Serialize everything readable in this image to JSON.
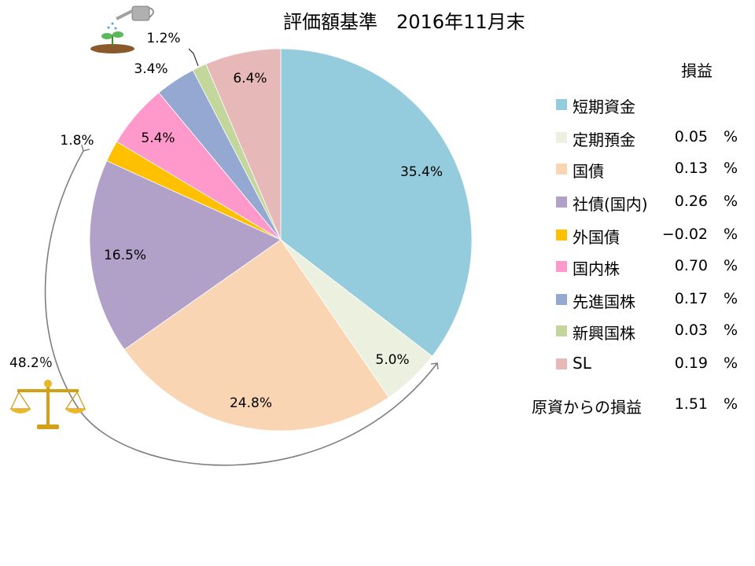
{
  "chart_data": {
    "type": "pie",
    "title": "評価額基準　2016年11月末",
    "start_angle_deg": 0,
    "direction": "clockwise",
    "slices": [
      {
        "name": "短期資金",
        "value": 35.4,
        "label": "35.4%",
        "color": "#94ccdd"
      },
      {
        "name": "定期預金",
        "value": 5.0,
        "label": "5.0%",
        "color": "#ebf0df"
      },
      {
        "name": "国債",
        "value": 24.8,
        "label": "24.8%",
        "color": "#f9d5b4"
      },
      {
        "name": "社債(国内)",
        "value": 16.5,
        "label": "16.5%",
        "color": "#b1a1c8"
      },
      {
        "name": "外国債",
        "value": 1.8,
        "label": "1.8%",
        "color": "#ffc000"
      },
      {
        "name": "国内株",
        "value": 5.4,
        "label": "5.4%",
        "color": "#ff99cc"
      },
      {
        "name": "先進国株",
        "value": 3.4,
        "label": "3.4%",
        "color": "#94a8d1"
      },
      {
        "name": "新興国株",
        "value": 1.2,
        "label": "1.2%",
        "color": "#c3d69b"
      },
      {
        "name": "SL",
        "value": 6.4,
        "label": "6.4%",
        "color": "#e6b9b8"
      }
    ],
    "annotation": {
      "label": "48.2％"
    }
  },
  "legend": {
    "header": "損益",
    "unit": "%",
    "items": [
      {
        "label": "短期資金",
        "value": "",
        "color": "#94ccdd"
      },
      {
        "label": "定期預金",
        "value": "0.05",
        "color": "#ebf0df"
      },
      {
        "label": "国債",
        "value": "0.13",
        "color": "#f9d5b4"
      },
      {
        "label": "社債(国内)",
        "value": "0.26",
        "color": "#b1a1c8"
      },
      {
        "label": "外国債",
        "value": "−0.02",
        "color": "#ffc000"
      },
      {
        "label": "国内株",
        "value": "0.70",
        "color": "#ff99cc"
      },
      {
        "label": "先進国株",
        "value": "0.17",
        "color": "#94a8d1"
      },
      {
        "label": "新興国株",
        "value": "0.03",
        "color": "#c3d69b"
      },
      {
        "label": "SL",
        "value": "0.19",
        "color": "#e6b9b8"
      }
    ],
    "total": {
      "label": "原資からの損益",
      "value": "1.51"
    }
  },
  "icons": [
    "watering-can-sprout-icon",
    "balance-scale-icon"
  ]
}
